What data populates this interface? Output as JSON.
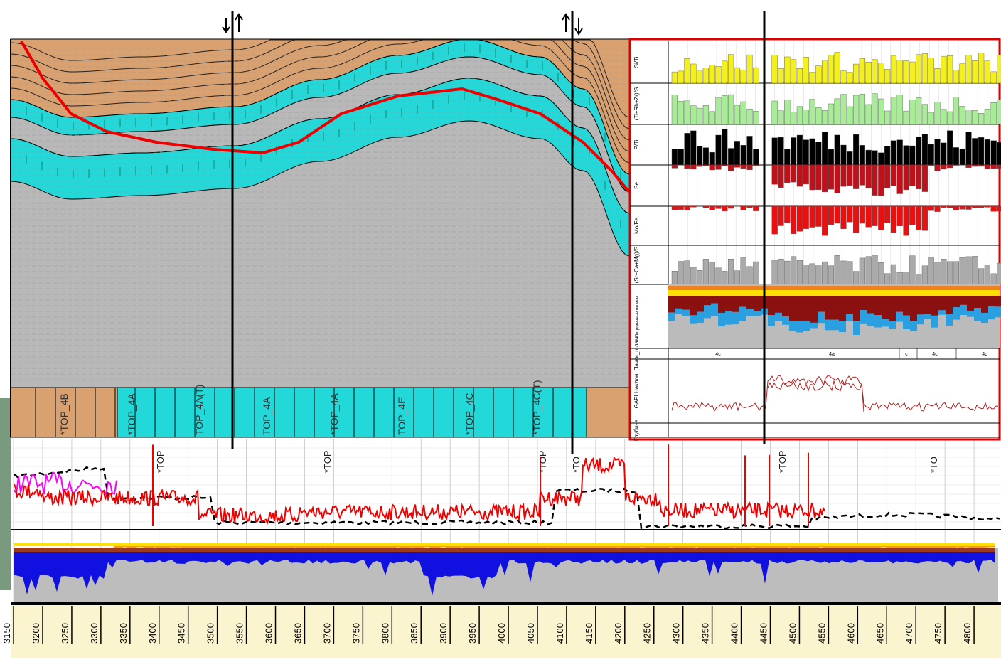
{
  "depth_axis": {
    "ticks": [
      3150,
      3200,
      3250,
      3300,
      3350,
      3400,
      3450,
      3500,
      3550,
      3600,
      3650,
      3700,
      3750,
      3800,
      3850,
      3900,
      3950,
      4000,
      4050,
      4100,
      4150,
      4200,
      4250,
      4300,
      4350,
      4400,
      4450,
      4500,
      4550,
      4600,
      4650,
      4700,
      4750,
      4800
    ]
  },
  "section_tops": [
    "*TOP_4B",
    "*TOP_4A",
    "TOP_4A(T)",
    "TOP_4A",
    "*TOP_4A",
    "TOP_4E",
    "*TOP_4C",
    "*TOP_4C(T)"
  ],
  "log_tops": [
    "*TOP",
    "*TOP",
    "*TOP",
    "*TO",
    "*TOP",
    "*TO"
  ],
  "panel": {
    "tracks": [
      "Si/Ti",
      "(Ti+Rb+Zr)/S",
      "P/Ti",
      "Se",
      "Mo/Fe",
      "(Sr+Ca+Mg)/S",
      "Петрогенные оксиды",
      "Пачки_шлам",
      "GAPI Наклон",
      "Глубина"
    ],
    "units": [
      "4c",
      "4a",
      "c",
      "4c",
      "4c"
    ]
  }
}
